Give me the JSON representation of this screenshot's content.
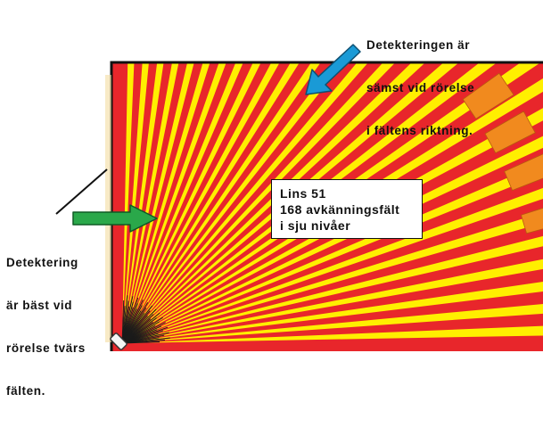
{
  "header": {
    "title": ""
  },
  "callout_top": {
    "line1": "Detekteringen är",
    "line2": "sämst vid rörelse",
    "line3": "i fältens riktning."
  },
  "callout_left": {
    "line1": "Detektering",
    "line2": "är bäst vid",
    "line3": "rörelse tvärs",
    "line4": "fälten."
  },
  "lens_box": {
    "line1": "Lins 51",
    "line2": "168 avkänningsfält",
    "line3": "i sju nivåer"
  },
  "colors": {
    "field_red": "#e8262b",
    "field_yellow": "#ffef00",
    "field_orange": "#f18a1e",
    "arrow_blue": "#1a9ad6",
    "arrow_green": "#2aa84a",
    "frame": "#111111",
    "corner_beige": "#f3dca0"
  }
}
